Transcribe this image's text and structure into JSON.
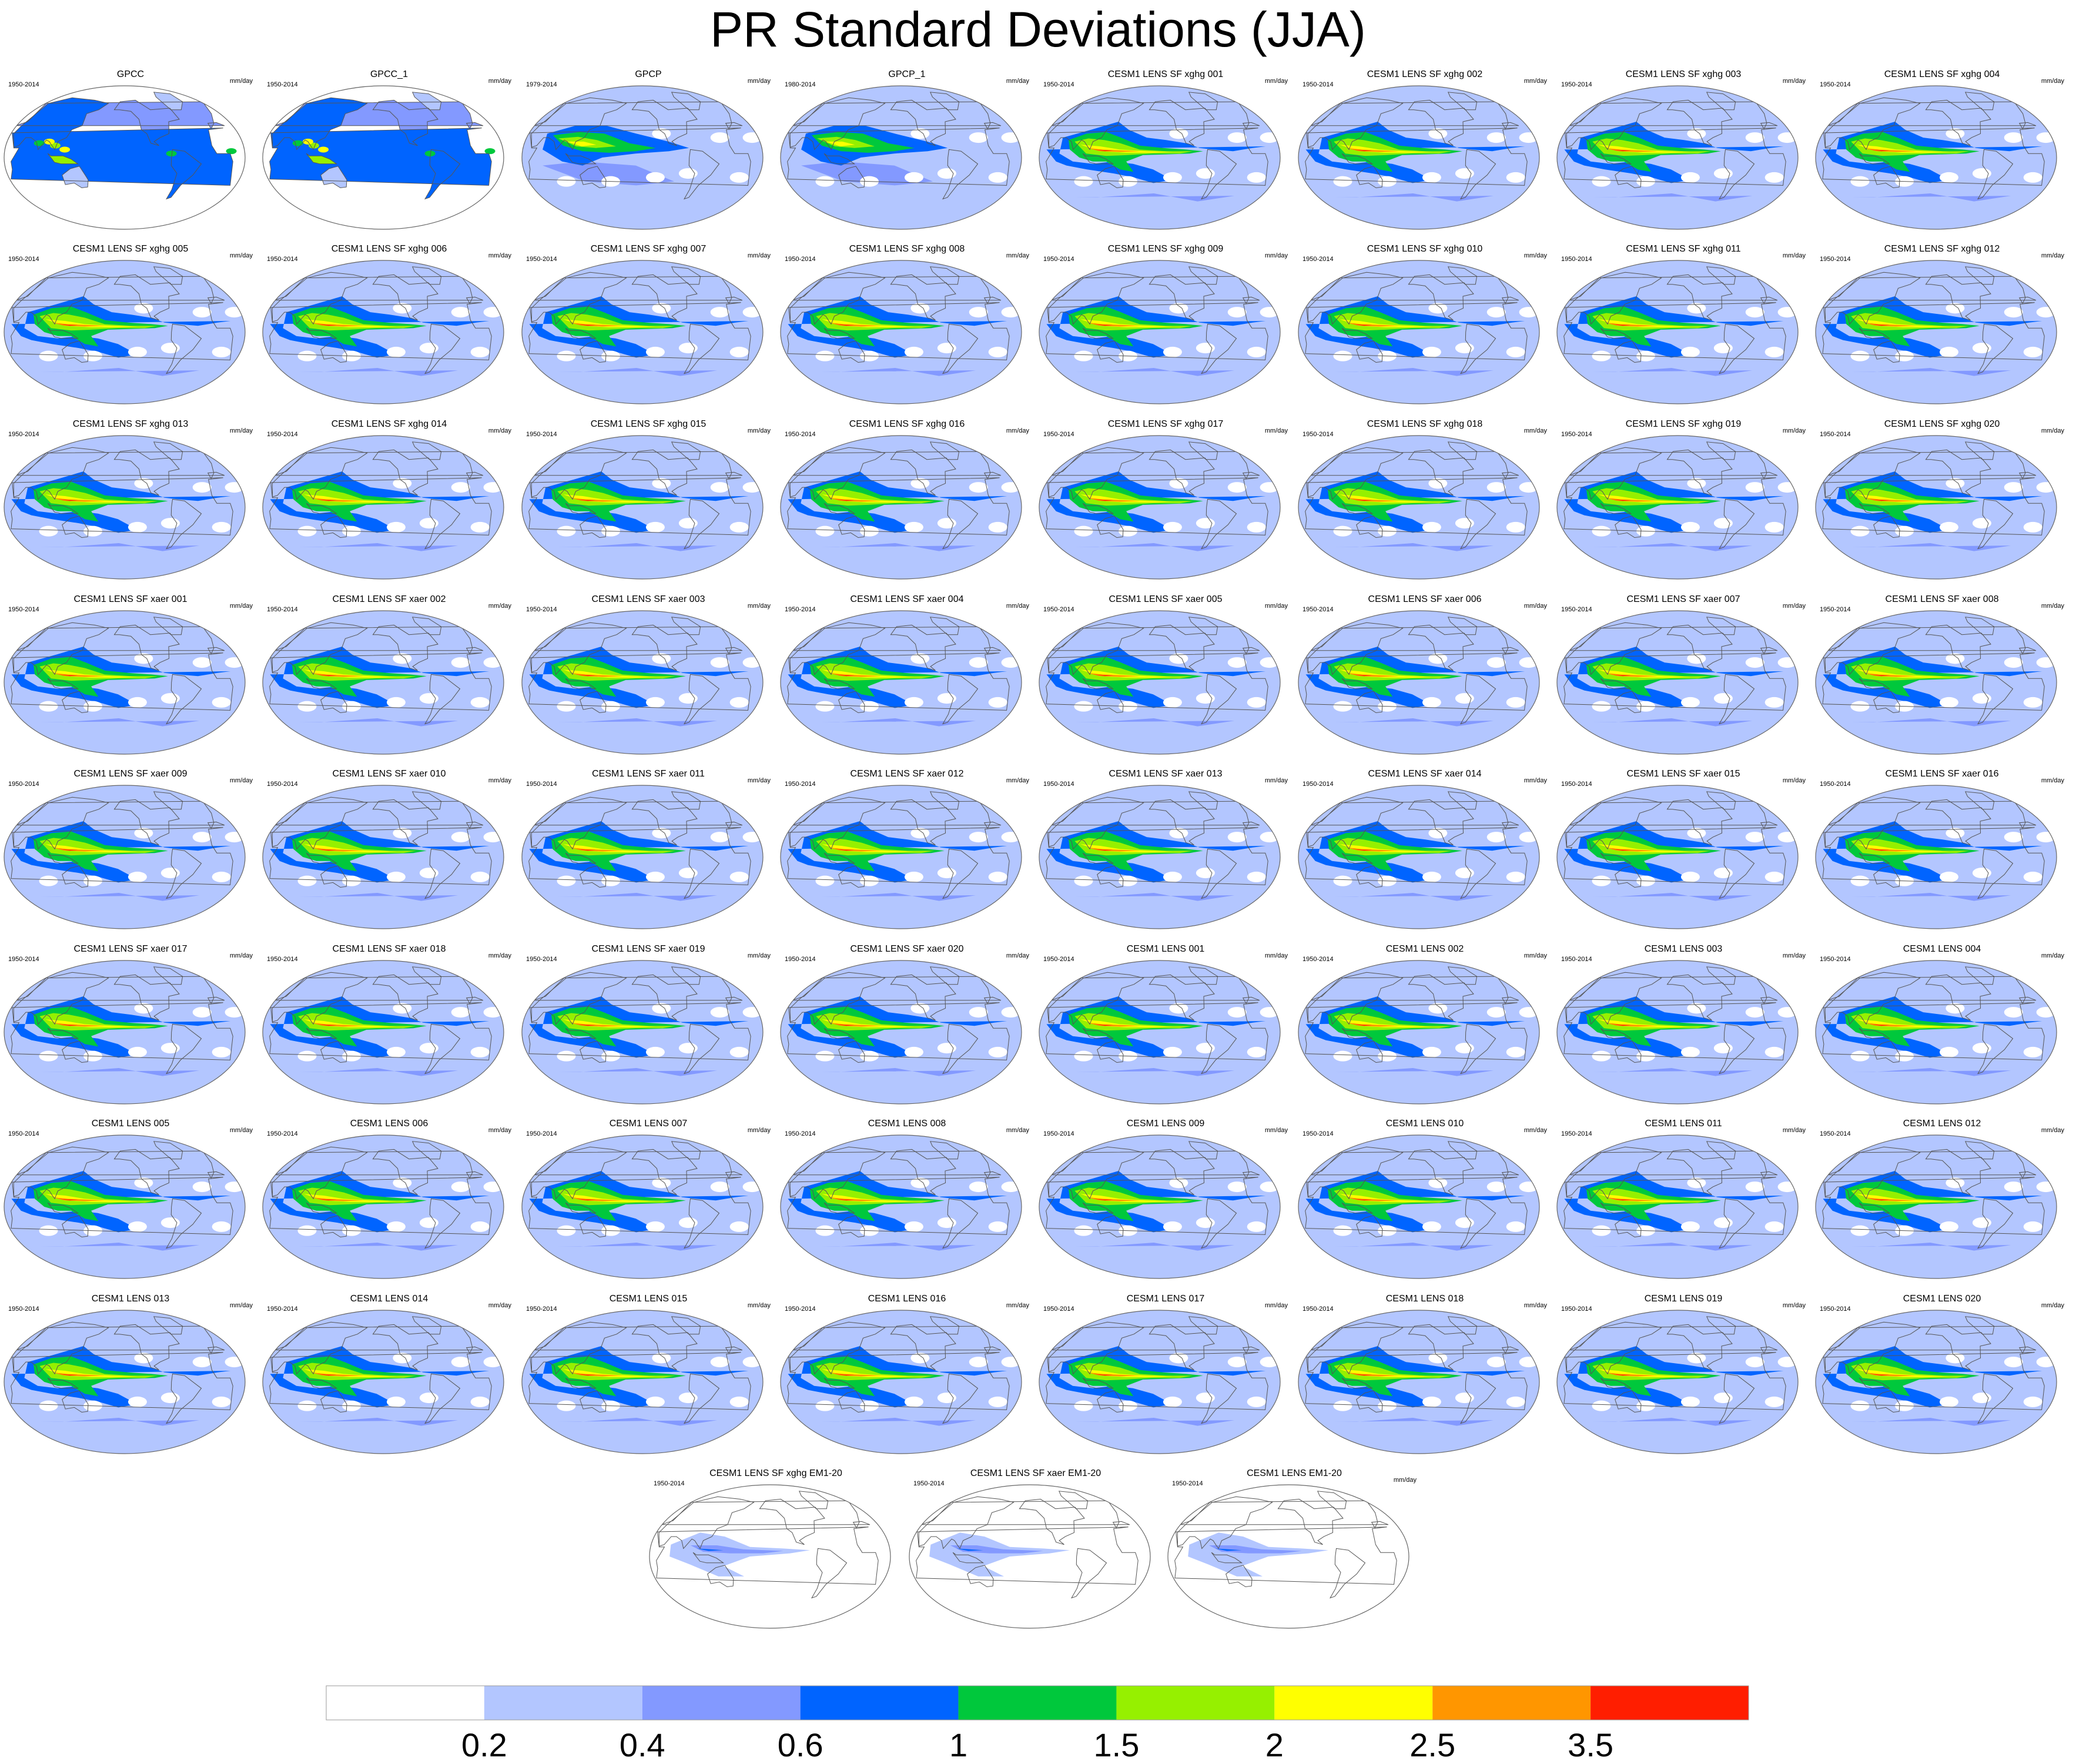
{
  "title": "PR Standard Deviations (JJA)",
  "colors": {
    "ocean_base": "#b3c6ff",
    "coastline": "#555555",
    "frame": "#666666"
  },
  "chart_data": {
    "type": "heatmap",
    "description_units": "mm/day",
    "colorbar": {
      "ticks": [
        "0.2",
        "0.4",
        "0.6",
        "1",
        "1.5",
        "2",
        "2.5",
        "3.5"
      ],
      "colors": [
        "#ffffff",
        "#b3c6ff",
        "#8399ff",
        "#0064ff",
        "#00c83c",
        "#96f000",
        "#ffff00",
        "#ff9600",
        "#ff1e00"
      ]
    },
    "panels": [
      {
        "title": "GPCC",
        "period": "1950-2014",
        "units": "mm/day",
        "kind": "gpcc"
      },
      {
        "title": "GPCC_1",
        "period": "1950-2014",
        "units": "mm/day",
        "kind": "gpcc"
      },
      {
        "title": "GPCP",
        "period": "1979-2014",
        "units": "mm/day",
        "kind": "gpcp"
      },
      {
        "title": "GPCP_1",
        "period": "1980-2014",
        "units": "mm/day",
        "kind": "gpcp"
      },
      {
        "title": "CESM1 LENS SF xghg 001",
        "period": "1950-2014",
        "units": "mm/day",
        "kind": "model"
      },
      {
        "title": "CESM1 LENS SF xghg 002",
        "period": "1950-2014",
        "units": "mm/day",
        "kind": "model"
      },
      {
        "title": "CESM1 LENS SF xghg 003",
        "period": "1950-2014",
        "units": "mm/day",
        "kind": "model"
      },
      {
        "title": "CESM1 LENS SF xghg 004",
        "period": "1950-2014",
        "units": "mm/day",
        "kind": "model"
      },
      {
        "title": "CESM1 LENS SF xghg 005",
        "period": "1950-2014",
        "units": "mm/day",
        "kind": "model"
      },
      {
        "title": "CESM1 LENS SF xghg 006",
        "period": "1950-2014",
        "units": "mm/day",
        "kind": "model"
      },
      {
        "title": "CESM1 LENS SF xghg 007",
        "period": "1950-2014",
        "units": "mm/day",
        "kind": "model"
      },
      {
        "title": "CESM1 LENS SF xghg 008",
        "period": "1950-2014",
        "units": "mm/day",
        "kind": "model"
      },
      {
        "title": "CESM1 LENS SF xghg 009",
        "period": "1950-2014",
        "units": "mm/day",
        "kind": "model"
      },
      {
        "title": "CESM1 LENS SF xghg 010",
        "period": "1950-2014",
        "units": "mm/day",
        "kind": "model"
      },
      {
        "title": "CESM1 LENS SF xghg 011",
        "period": "1950-2014",
        "units": "mm/day",
        "kind": "model"
      },
      {
        "title": "CESM1 LENS SF xghg 012",
        "period": "1950-2014",
        "units": "mm/day",
        "kind": "model"
      },
      {
        "title": "CESM1 LENS SF xghg 013",
        "period": "1950-2014",
        "units": "mm/day",
        "kind": "model"
      },
      {
        "title": "CESM1 LENS SF xghg 014",
        "period": "1950-2014",
        "units": "mm/day",
        "kind": "model"
      },
      {
        "title": "CESM1 LENS SF xghg 015",
        "period": "1950-2014",
        "units": "mm/day",
        "kind": "model"
      },
      {
        "title": "CESM1 LENS SF xghg 016",
        "period": "1950-2014",
        "units": "mm/day",
        "kind": "model"
      },
      {
        "title": "CESM1 LENS SF xghg 017",
        "period": "1950-2014",
        "units": "mm/day",
        "kind": "model"
      },
      {
        "title": "CESM1 LENS SF xghg 018",
        "period": "1950-2014",
        "units": "mm/day",
        "kind": "model"
      },
      {
        "title": "CESM1 LENS SF xghg 019",
        "period": "1950-2014",
        "units": "mm/day",
        "kind": "model"
      },
      {
        "title": "CESM1 LENS SF xghg 020",
        "period": "1950-2014",
        "units": "mm/day",
        "kind": "model"
      },
      {
        "title": "CESM1 LENS SF xaer 001",
        "period": "1950-2014",
        "units": "mm/day",
        "kind": "model"
      },
      {
        "title": "CESM1 LENS SF xaer 002",
        "period": "1950-2014",
        "units": "mm/day",
        "kind": "model"
      },
      {
        "title": "CESM1 LENS SF xaer 003",
        "period": "1950-2014",
        "units": "mm/day",
        "kind": "model"
      },
      {
        "title": "CESM1 LENS SF xaer 004",
        "period": "1950-2014",
        "units": "mm/day",
        "kind": "model"
      },
      {
        "title": "CESM1 LENS SF xaer 005",
        "period": "1950-2014",
        "units": "mm/day",
        "kind": "model"
      },
      {
        "title": "CESM1 LENS SF xaer 006",
        "period": "1950-2014",
        "units": "mm/day",
        "kind": "model"
      },
      {
        "title": "CESM1 LENS SF xaer 007",
        "period": "1950-2014",
        "units": "mm/day",
        "kind": "model"
      },
      {
        "title": "CESM1 LENS SF xaer 008",
        "period": "1950-2014",
        "units": "mm/day",
        "kind": "model"
      },
      {
        "title": "CESM1 LENS SF xaer 009",
        "period": "1950-2014",
        "units": "mm/day",
        "kind": "model"
      },
      {
        "title": "CESM1 LENS SF xaer 010",
        "period": "1950-2014",
        "units": "mm/day",
        "kind": "model"
      },
      {
        "title": "CESM1 LENS SF xaer 011",
        "period": "1950-2014",
        "units": "mm/day",
        "kind": "model"
      },
      {
        "title": "CESM1 LENS SF xaer 012",
        "period": "1950-2014",
        "units": "mm/day",
        "kind": "model"
      },
      {
        "title": "CESM1 LENS SF xaer 013",
        "period": "1950-2014",
        "units": "mm/day",
        "kind": "model"
      },
      {
        "title": "CESM1 LENS SF xaer 014",
        "period": "1950-2014",
        "units": "mm/day",
        "kind": "model"
      },
      {
        "title": "CESM1 LENS SF xaer 015",
        "period": "1950-2014",
        "units": "mm/day",
        "kind": "model"
      },
      {
        "title": "CESM1 LENS SF xaer 016",
        "period": "1950-2014",
        "units": "mm/day",
        "kind": "model"
      },
      {
        "title": "CESM1 LENS SF xaer 017",
        "period": "1950-2014",
        "units": "mm/day",
        "kind": "model"
      },
      {
        "title": "CESM1 LENS SF xaer 018",
        "period": "1950-2014",
        "units": "mm/day",
        "kind": "model"
      },
      {
        "title": "CESM1 LENS SF xaer 019",
        "period": "1950-2014",
        "units": "mm/day",
        "kind": "model"
      },
      {
        "title": "CESM1 LENS SF xaer 020",
        "period": "1950-2014",
        "units": "mm/day",
        "kind": "model"
      },
      {
        "title": "CESM1 LENS 001",
        "period": "1950-2014",
        "units": "mm/day",
        "kind": "model"
      },
      {
        "title": "CESM1 LENS 002",
        "period": "1950-2014",
        "units": "mm/day",
        "kind": "model"
      },
      {
        "title": "CESM1 LENS 003",
        "period": "1950-2014",
        "units": "mm/day",
        "kind": "model"
      },
      {
        "title": "CESM1 LENS 004",
        "period": "1950-2014",
        "units": "mm/day",
        "kind": "model"
      },
      {
        "title": "CESM1 LENS 005",
        "period": "1950-2014",
        "units": "mm/day",
        "kind": "model"
      },
      {
        "title": "CESM1 LENS 006",
        "period": "1950-2014",
        "units": "mm/day",
        "kind": "model"
      },
      {
        "title": "CESM1 LENS 007",
        "period": "1950-2014",
        "units": "mm/day",
        "kind": "model"
      },
      {
        "title": "CESM1 LENS 008",
        "period": "1950-2014",
        "units": "mm/day",
        "kind": "model"
      },
      {
        "title": "CESM1 LENS 009",
        "period": "1950-2014",
        "units": "mm/day",
        "kind": "model"
      },
      {
        "title": "CESM1 LENS 010",
        "period": "1950-2014",
        "units": "mm/day",
        "kind": "model"
      },
      {
        "title": "CESM1 LENS 011",
        "period": "1950-2014",
        "units": "mm/day",
        "kind": "model"
      },
      {
        "title": "CESM1 LENS 012",
        "period": "1950-2014",
        "units": "mm/day",
        "kind": "model"
      },
      {
        "title": "CESM1 LENS 013",
        "period": "1950-2014",
        "units": "mm/day",
        "kind": "model"
      },
      {
        "title": "CESM1 LENS 014",
        "period": "1950-2014",
        "units": "mm/day",
        "kind": "model"
      },
      {
        "title": "CESM1 LENS 015",
        "period": "1950-2014",
        "units": "mm/day",
        "kind": "model"
      },
      {
        "title": "CESM1 LENS 016",
        "period": "1950-2014",
        "units": "mm/day",
        "kind": "model"
      },
      {
        "title": "CESM1 LENS 017",
        "period": "1950-2014",
        "units": "mm/day",
        "kind": "model"
      },
      {
        "title": "CESM1 LENS 018",
        "period": "1950-2014",
        "units": "mm/day",
        "kind": "model"
      },
      {
        "title": "CESM1 LENS 019",
        "period": "1950-2014",
        "units": "mm/day",
        "kind": "model"
      },
      {
        "title": "CESM1 LENS 020",
        "period": "1950-2014",
        "units": "mm/day",
        "kind": "model"
      },
      {
        "title": "CESM1 LENS SF xghg EM1-20",
        "period": "1950-2014",
        "units": "",
        "kind": "em"
      },
      {
        "title": "CESM1 LENS SF xaer EM1-20",
        "period": "1950-2014",
        "units": "",
        "kind": "em"
      },
      {
        "title": "CESM1 LENS EM1-20",
        "period": "1950-2014",
        "units": "mm/day",
        "kind": "em"
      }
    ]
  }
}
